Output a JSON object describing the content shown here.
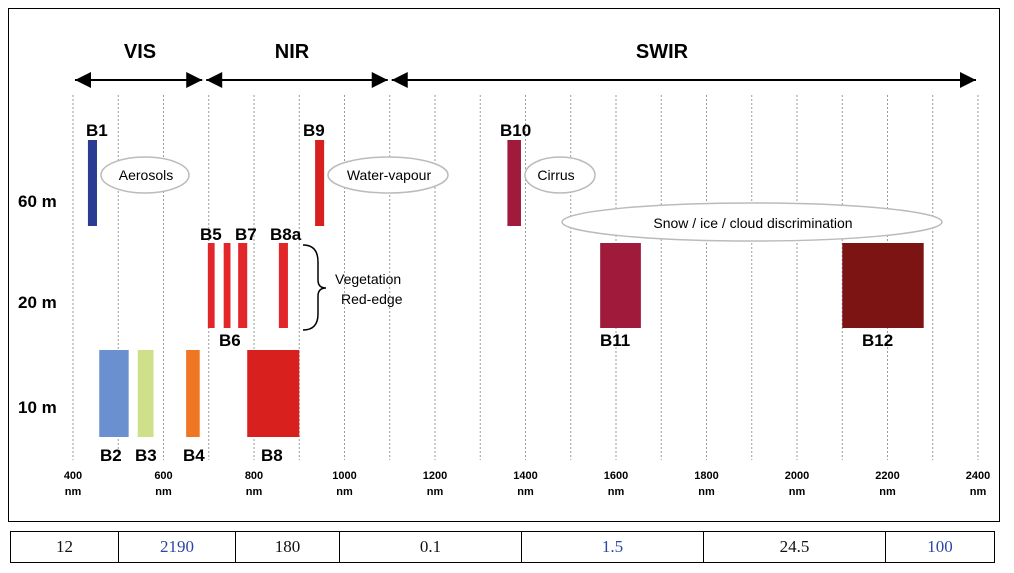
{
  "chart_data": {
    "type": "bar",
    "regions": [
      {
        "label": "VIS",
        "from_nm": 400,
        "to_nm": 690
      },
      {
        "label": "NIR",
        "from_nm": 690,
        "to_nm": 1100
      },
      {
        "label": "SWIR",
        "from_nm": 1100,
        "to_nm": 2400
      }
    ],
    "x_ticks": [
      {
        "value": 400,
        "label": "400",
        "unit": "nm"
      },
      {
        "value": 600,
        "label": "600",
        "unit": "nm"
      },
      {
        "value": 800,
        "label": "800",
        "unit": "nm"
      },
      {
        "value": 1000,
        "label": "1000",
        "unit": "nm"
      },
      {
        "value": 1200,
        "label": "1200",
        "unit": "nm"
      },
      {
        "value": 1400,
        "label": "1400",
        "unit": "nm"
      },
      {
        "value": 1600,
        "label": "1600",
        "unit": "nm"
      },
      {
        "value": 1800,
        "label": "1800",
        "unit": "nm"
      },
      {
        "value": 2000,
        "label": "2000",
        "unit": "nm"
      },
      {
        "value": 2200,
        "label": "2200",
        "unit": "nm"
      },
      {
        "value": 2400,
        "label": "2400",
        "unit": "nm"
      }
    ],
    "xlim": [
      400,
      2400
    ],
    "resolutions": [
      "60 m",
      "20 m",
      "10 m"
    ],
    "bands": [
      {
        "name": "B1",
        "from_nm": 433,
        "to_nm": 453,
        "resolution": "60 m",
        "color": "#2b3a92"
      },
      {
        "name": "B2",
        "from_nm": 458,
        "to_nm": 523,
        "resolution": "10 m",
        "color": "#6b90cf"
      },
      {
        "name": "B3",
        "from_nm": 543,
        "to_nm": 578,
        "resolution": "10 m",
        "color": "#cfe08a"
      },
      {
        "name": "B4",
        "from_nm": 650,
        "to_nm": 680,
        "resolution": "10 m",
        "color": "#ef7622"
      },
      {
        "name": "B5",
        "from_nm": 698,
        "to_nm": 713,
        "resolution": "20 m",
        "color": "#e2262a"
      },
      {
        "name": "B6",
        "from_nm": 733,
        "to_nm": 748,
        "resolution": "20 m",
        "color": "#e2262a"
      },
      {
        "name": "B7",
        "from_nm": 765,
        "to_nm": 785,
        "resolution": "20 m",
        "color": "#e2262a"
      },
      {
        "name": "B8",
        "from_nm": 785,
        "to_nm": 900,
        "resolution": "10 m",
        "color": "#d8211f"
      },
      {
        "name": "B8a",
        "from_nm": 855,
        "to_nm": 875,
        "resolution": "20 m",
        "color": "#e2262a"
      },
      {
        "name": "B9",
        "from_nm": 935,
        "to_nm": 955,
        "resolution": "60 m",
        "color": "#d8211f"
      },
      {
        "name": "B10",
        "from_nm": 1360,
        "to_nm": 1390,
        "resolution": "60 m",
        "color": "#a01a3c"
      },
      {
        "name": "B11",
        "from_nm": 1565,
        "to_nm": 1655,
        "resolution": "20 m",
        "color": "#a01a3c"
      },
      {
        "name": "B12",
        "from_nm": 2100,
        "to_nm": 2280,
        "resolution": "20 m",
        "color": "#7d1414"
      }
    ],
    "annotations": [
      "Aerosols",
      "Water-vapour",
      "Cirrus",
      "Snow / ice / cloud discrimination",
      "Vegetation",
      "Red-edge"
    ]
  },
  "footer_table": [
    {
      "value": "12",
      "color": "#111111"
    },
    {
      "value": "2190",
      "color": "#2c45a8"
    },
    {
      "value": "180",
      "color": "#111111"
    },
    {
      "value": "0.1",
      "color": "#111111"
    },
    {
      "value": "1.5",
      "color": "#2c45a8"
    },
    {
      "value": "24.5",
      "color": "#111111"
    },
    {
      "value": "100",
      "color": "#2c45a8"
    }
  ]
}
